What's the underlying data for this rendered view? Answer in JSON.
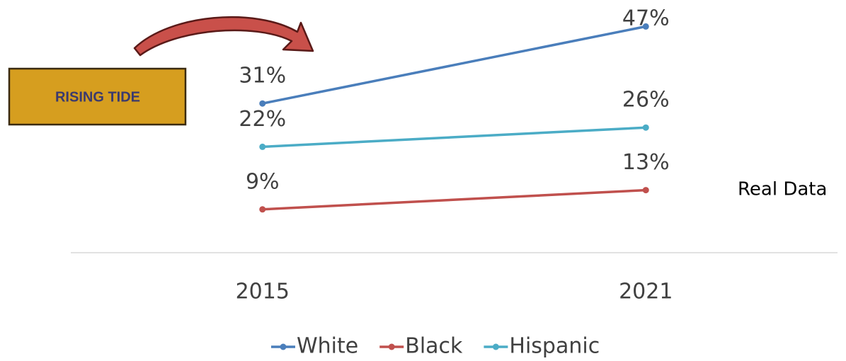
{
  "chart_data": {
    "type": "line",
    "annotations": [
      "RISING TIDE",
      "Real Data"
    ],
    "categories": [
      "2015",
      "2021"
    ],
    "ylim": [
      0,
      50
    ],
    "series": [
      {
        "name": "White",
        "color": "#4a7ebb",
        "values": [
          31,
          47
        ],
        "value_labels": [
          "31%",
          "47%"
        ]
      },
      {
        "name": "Black",
        "color": "#c0504d",
        "values": [
          9,
          13
        ],
        "value_labels": [
          "9%",
          "13%"
        ]
      },
      {
        "name": "Hispanic",
        "color": "#4bacc6",
        "values": [
          22,
          26
        ],
        "value_labels": [
          "22%",
          "26%"
        ]
      }
    ]
  }
}
